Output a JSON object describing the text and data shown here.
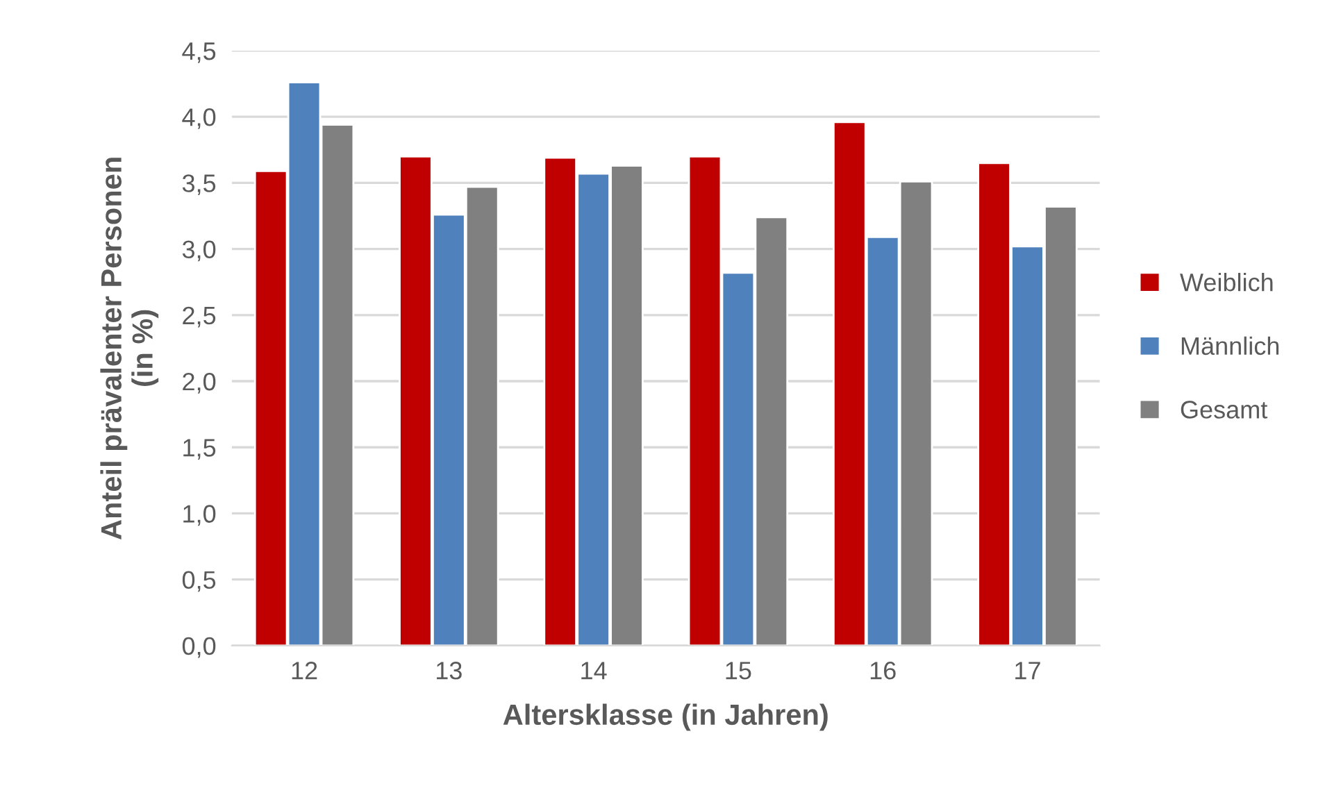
{
  "chart_data": {
    "type": "bar",
    "xlabel": "Altersklasse (in Jahren)",
    "ylabel": "Anteil prävalenter Personen\n(in %)",
    "categories": [
      "12",
      "13",
      "14",
      "15",
      "16",
      "17"
    ],
    "series": [
      {
        "name": "Weiblich",
        "color": "#c00000",
        "values": [
          3.59,
          3.7,
          3.69,
          3.7,
          3.96,
          3.65
        ]
      },
      {
        "name": "Männlich",
        "color": "#4f81bd",
        "values": [
          4.26,
          3.26,
          3.57,
          2.82,
          3.09,
          3.02
        ]
      },
      {
        "name": "Gesamt",
        "color": "#808080",
        "values": [
          3.94,
          3.47,
          3.63,
          3.24,
          3.51,
          3.32
        ]
      }
    ],
    "ylim": [
      0,
      4.5
    ],
    "yticks": [
      {
        "value": 0,
        "label": "0,0"
      },
      {
        "value": 0.5,
        "label": "0,5"
      },
      {
        "value": 1.0,
        "label": "1,0"
      },
      {
        "value": 1.5,
        "label": "1,5"
      },
      {
        "value": 2.0,
        "label": "2,0"
      },
      {
        "value": 2.5,
        "label": "2,5"
      },
      {
        "value": 3.0,
        "label": "3,0"
      },
      {
        "value": 3.5,
        "label": "3,5"
      },
      {
        "value": 4.0,
        "label": "4,0"
      },
      {
        "value": 4.5,
        "label": "4,5"
      }
    ],
    "grid": "y",
    "legend": "right"
  }
}
